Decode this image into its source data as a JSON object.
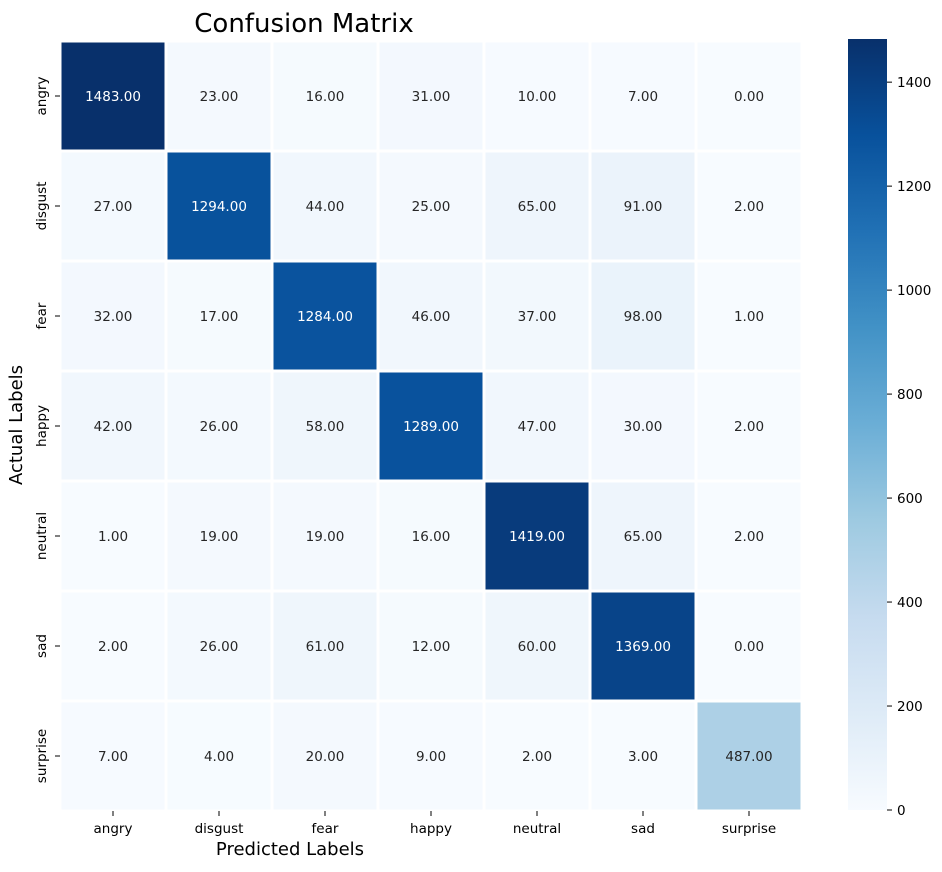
{
  "chart_data": {
    "type": "heatmap",
    "title": "Confusion Matrix",
    "xlabel": "Predicted Labels",
    "ylabel": "Actual Labels",
    "x_categories": [
      "angry",
      "disgust",
      "fear",
      "happy",
      "neutral",
      "sad",
      "surprise"
    ],
    "y_categories": [
      "angry",
      "disgust",
      "fear",
      "happy",
      "neutral",
      "sad",
      "surprise"
    ],
    "values": [
      [
        1483,
        23,
        16,
        31,
        10,
        7,
        0
      ],
      [
        27,
        1294,
        44,
        25,
        65,
        91,
        2
      ],
      [
        32,
        17,
        1284,
        46,
        37,
        98,
        1
      ],
      [
        42,
        26,
        58,
        1289,
        47,
        30,
        2
      ],
      [
        1,
        19,
        19,
        16,
        1419,
        65,
        2
      ],
      [
        2,
        26,
        61,
        12,
        60,
        1369,
        0
      ],
      [
        7,
        4,
        20,
        9,
        2,
        3,
        487
      ]
    ],
    "value_labels": [
      [
        "1483.00",
        "23.00",
        "16.00",
        "31.00",
        "10.00",
        "7.00",
        "0.00"
      ],
      [
        "27.00",
        "1294.00",
        "44.00",
        "25.00",
        "65.00",
        "91.00",
        "2.00"
      ],
      [
        "32.00",
        "17.00",
        "1284.00",
        "46.00",
        "37.00",
        "98.00",
        "1.00"
      ],
      [
        "42.00",
        "26.00",
        "58.00",
        "1289.00",
        "47.00",
        "30.00",
        "2.00"
      ],
      [
        "1.00",
        "19.00",
        "19.00",
        "16.00",
        "1419.00",
        "65.00",
        "2.00"
      ],
      [
        "2.00",
        "26.00",
        "61.00",
        "12.00",
        "60.00",
        "1369.00",
        "0.00"
      ],
      [
        "7.00",
        "4.00",
        "20.00",
        "9.00",
        "2.00",
        "3.00",
        "487.00"
      ]
    ],
    "colorbar": {
      "range": [
        0,
        1483
      ],
      "ticks": [
        0,
        200,
        400,
        600,
        800,
        1000,
        1200,
        1400
      ],
      "tick_labels": [
        "0",
        "200",
        "400",
        "600",
        "800",
        "1000",
        "1200",
        "1400"
      ],
      "colormap": "Blues",
      "colors": [
        "#f7fbff",
        "#deebf7",
        "#c6dbef",
        "#9ecae1",
        "#6baed6",
        "#4292c6",
        "#2171b5",
        "#08519c",
        "#08306b"
      ]
    },
    "grid_line_color": "#ffffff",
    "legend": "colorbar-right"
  }
}
